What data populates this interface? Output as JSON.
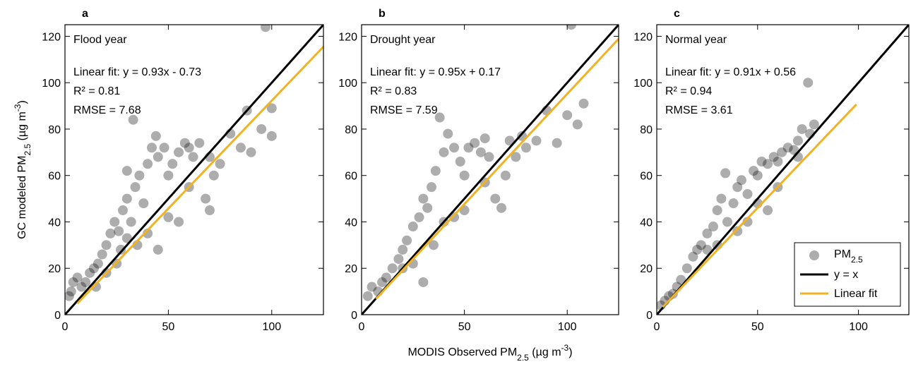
{
  "chart_data": [
    {
      "type": "scatter",
      "panel_label": "a",
      "annotations": [
        "Flood year",
        "Linear fit: y = 0.93x - 0.73",
        "R² = 0.81",
        "RMSE = 7.68"
      ],
      "y_label": {
        "parts": [
          "GC modeled PM",
          "2.5",
          " (µg m",
          "-3",
          ")"
        ],
        "styles": [
          "normal",
          "sub",
          "normal",
          "sup",
          "normal"
        ]
      },
      "xlim": [
        0,
        125
      ],
      "ylim": [
        0,
        125
      ],
      "xticks": [
        0,
        50,
        100
      ],
      "yticks": [
        0,
        20,
        40,
        60,
        80,
        100,
        120
      ],
      "series": [
        {
          "color": "#000000",
          "alpha": 0.32,
          "style": "marker",
          "x": [
            2,
            3,
            4,
            6,
            8,
            10,
            12,
            14,
            16,
            18,
            20,
            22,
            24,
            26,
            28,
            30,
            32,
            34,
            36,
            38,
            40,
            42,
            44,
            45,
            48,
            50,
            52,
            55,
            58,
            60,
            62,
            65,
            68,
            70,
            72,
            75,
            80,
            85,
            88,
            90,
            95,
            97,
            100,
            100,
            33,
            30,
            45,
            55,
            25,
            35,
            40,
            20,
            15,
            50,
            60,
            70,
            30,
            27
          ],
          "values": [
            8,
            10,
            14,
            16,
            12,
            14,
            18,
            20,
            22,
            26,
            30,
            35,
            40,
            36,
            45,
            50,
            40,
            55,
            60,
            48,
            65,
            72,
            77,
            68,
            72,
            60,
            65,
            70,
            74,
            72,
            68,
            74,
            50,
            45,
            60,
            65,
            78,
            72,
            88,
            70,
            80,
            124,
            89,
            77,
            84,
            62,
            28,
            40,
            22,
            30,
            35,
            18,
            12,
            42,
            55,
            68,
            33,
            28
          ]
        },
        {
          "color": "#000000",
          "style": "line",
          "x": [
            0,
            125
          ],
          "values": [
            0,
            125
          ]
        },
        {
          "color": "#f0b323",
          "style": "line",
          "x": [
            6,
            125
          ],
          "values": [
            4.85,
            115.5
          ]
        }
      ]
    },
    {
      "type": "scatter",
      "panel_label": "b",
      "annotations": [
        "Drought year",
        "Linear fit: y = 0.95x + 0.17",
        "R² = 0.83",
        "RMSE = 7.59"
      ],
      "x_label": {
        "parts": [
          "MODIS Observed PM",
          "2.5",
          " (µg m",
          "-3",
          ")"
        ],
        "styles": [
          "normal",
          "sub",
          "normal",
          "sup",
          "normal"
        ]
      },
      "xlim": [
        0,
        125
      ],
      "ylim": [
        0,
        125
      ],
      "xticks": [
        0,
        50,
        100
      ],
      "yticks": [
        0,
        20,
        40,
        60,
        80,
        100,
        120
      ],
      "series": [
        {
          "color": "#000000",
          "alpha": 0.32,
          "style": "marker",
          "x": [
            3,
            5,
            8,
            10,
            12,
            15,
            18,
            20,
            22,
            25,
            28,
            30,
            32,
            34,
            36,
            38,
            40,
            42,
            45,
            48,
            50,
            52,
            55,
            58,
            60,
            62,
            65,
            68,
            70,
            72,
            75,
            78,
            80,
            85,
            90,
            95,
            100,
            102,
            105,
            108,
            30,
            40,
            35,
            50,
            25,
            20,
            60,
            45
          ],
          "values": [
            8,
            12,
            10,
            14,
            16,
            20,
            24,
            28,
            32,
            38,
            42,
            50,
            46,
            55,
            62,
            85,
            70,
            78,
            72,
            66,
            60,
            72,
            74,
            70,
            76,
            68,
            50,
            46,
            60,
            75,
            68,
            77,
            72,
            75,
            88,
            74,
            86,
            125,
            82,
            91,
            14,
            40,
            30,
            45,
            22,
            20,
            57,
            42
          ]
        },
        {
          "color": "#000000",
          "style": "line",
          "x": [
            0,
            125
          ],
          "values": [
            0,
            125
          ]
        },
        {
          "color": "#f0b323",
          "style": "line",
          "x": [
            7,
            125
          ],
          "values": [
            6.82,
            118.92
          ]
        }
      ]
    },
    {
      "type": "scatter",
      "panel_label": "c",
      "annotations": [
        "Normal year",
        "Linear fit: y = 0.91x + 0.56",
        "R² = 0.94",
        "RMSE = 3.61"
      ],
      "xlim": [
        0,
        125
      ],
      "ylim": [
        0,
        125
      ],
      "xticks": [
        0,
        50,
        100
      ],
      "yticks": [
        0,
        20,
        40,
        60,
        80,
        100,
        120
      ],
      "legend": "lower right",
      "series": [
        {
          "name": {
            "parts": [
              "PM",
              "2.5"
            ],
            "styles": [
              "normal",
              "sub"
            ]
          },
          "color": "#000000",
          "alpha": 0.32,
          "style": "marker",
          "x": [
            2,
            4,
            6,
            8,
            10,
            12,
            15,
            18,
            20,
            22,
            25,
            28,
            30,
            32,
            34,
            35,
            38,
            40,
            42,
            45,
            48,
            50,
            52,
            55,
            58,
            60,
            62,
            65,
            68,
            70,
            72,
            75,
            76,
            78,
            55,
            60,
            45,
            40,
            30,
            25,
            50,
            70
          ],
          "values": [
            4,
            6,
            8,
            9,
            12,
            15,
            20,
            25,
            28,
            30,
            35,
            38,
            45,
            50,
            61,
            40,
            48,
            55,
            58,
            52,
            62,
            60,
            66,
            65,
            68,
            66,
            70,
            72,
            71,
            75,
            80,
            100,
            78,
            82,
            45,
            55,
            40,
            36,
            30,
            28,
            48,
            68
          ]
        },
        {
          "name": "y = x",
          "color": "#000000",
          "style": "line",
          "x": [
            0,
            125
          ],
          "values": [
            0,
            125
          ]
        },
        {
          "name": "Linear fit",
          "color": "#f0b323",
          "style": "line",
          "x": [
            3,
            99
          ],
          "values": [
            3.29,
            90.65
          ]
        }
      ]
    }
  ]
}
